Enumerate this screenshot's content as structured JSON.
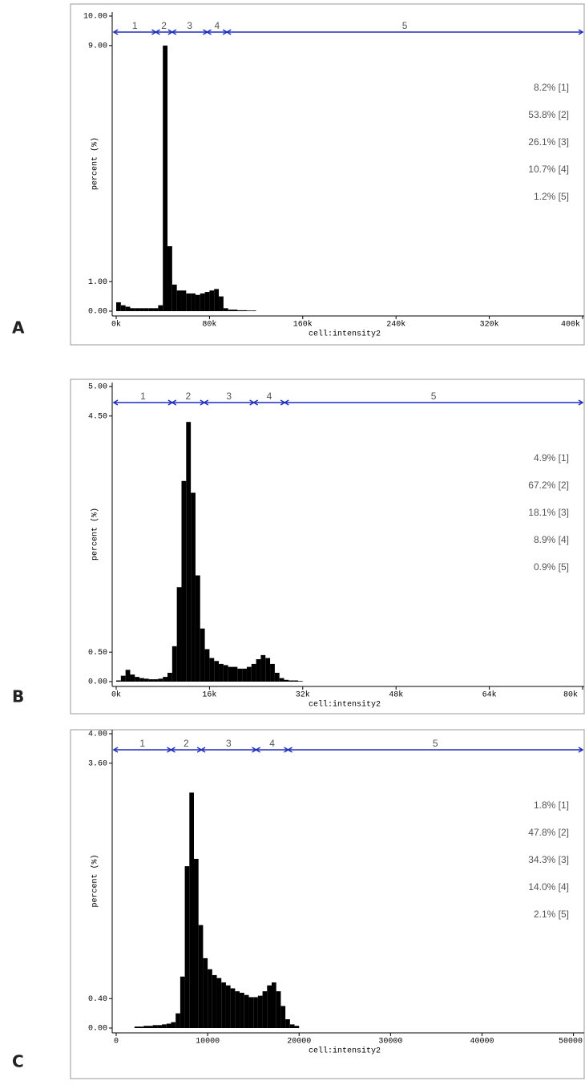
{
  "chart_data": [
    {
      "type": "histogram",
      "panel_label": "A",
      "xlabel": "cell:intensity2",
      "ylabel": "percent (%)",
      "color": "#000000",
      "gate_color": "#1f2fbf",
      "xlim": [
        0,
        400000
      ],
      "ylim": [
        0,
        10
      ],
      "xticks": [
        {
          "value": 0,
          "label": "0k"
        },
        {
          "value": 80000,
          "label": "80k"
        },
        {
          "value": 160000,
          "label": "160k"
        },
        {
          "value": 240000,
          "label": "240k"
        },
        {
          "value": 320000,
          "label": "320k"
        },
        {
          "value": 400000,
          "label": "400k"
        }
      ],
      "yticks": [
        {
          "value": 0,
          "label": "0.00"
        },
        {
          "value": 1,
          "label": "1.00"
        },
        {
          "value": 9,
          "label": "9.00"
        },
        {
          "value": 10,
          "label": "10.00"
        }
      ],
      "bins": [
        0,
        4000,
        8000,
        12000,
        16000,
        20000,
        24000,
        28000,
        32000,
        36000,
        40000,
        44000,
        48000,
        52000,
        56000,
        60000,
        64000,
        68000,
        72000,
        76000,
        80000,
        84000,
        88000,
        92000,
        96000,
        100000,
        104000,
        108000,
        112000,
        116000,
        120000
      ],
      "values": [
        0.3,
        0.2,
        0.15,
        0.1,
        0.1,
        0.1,
        0.1,
        0.1,
        0.1,
        0.2,
        9.0,
        2.2,
        0.9,
        0.7,
        0.7,
        0.6,
        0.6,
        0.55,
        0.6,
        0.65,
        0.7,
        0.75,
        0.5,
        0.1,
        0.05,
        0.05,
        0.03,
        0.03,
        0.02,
        0.02
      ],
      "gates": [
        {
          "label": "1",
          "start": 0,
          "end": 34000,
          "percent": "8.2% [1]"
        },
        {
          "label": "2",
          "start": 34000,
          "end": 48000,
          "percent": "53.8% [2]"
        },
        {
          "label": "3",
          "start": 48000,
          "end": 78000,
          "percent": "26.1% [3]"
        },
        {
          "label": "4",
          "start": 78000,
          "end": 95000,
          "percent": "10.7% [4]"
        },
        {
          "label": "5",
          "start": 95000,
          "end": 400000,
          "percent": "1.2% [5]"
        }
      ]
    },
    {
      "type": "histogram",
      "panel_label": "B",
      "xlabel": "cell:intensity2",
      "ylabel": "percent (%)",
      "color": "#000000",
      "gate_color": "#1f2fbf",
      "xlim": [
        0,
        80000
      ],
      "ylim": [
        0,
        5
      ],
      "xticks": [
        {
          "value": 0,
          "label": "0k"
        },
        {
          "value": 16000,
          "label": "16k"
        },
        {
          "value": 32000,
          "label": "32k"
        },
        {
          "value": 48000,
          "label": "48k"
        },
        {
          "value": 64000,
          "label": "64k"
        },
        {
          "value": 80000,
          "label": "80k"
        }
      ],
      "yticks": [
        {
          "value": 0,
          "label": "0.00"
        },
        {
          "value": 0.5,
          "label": "0.50"
        },
        {
          "value": 4.5,
          "label": "4.50"
        },
        {
          "value": 5,
          "label": "5.00"
        }
      ],
      "bins": [
        0,
        800,
        1600,
        2400,
        3200,
        4000,
        4800,
        5600,
        6400,
        7200,
        8000,
        8800,
        9600,
        10400,
        11200,
        12000,
        12800,
        13600,
        14400,
        15200,
        16000,
        16800,
        17600,
        18400,
        19200,
        20000,
        20800,
        21600,
        22400,
        23200,
        24000,
        24800,
        25600,
        26400,
        27200,
        28000,
        28800,
        29600,
        30400,
        31200,
        32000
      ],
      "values": [
        0.02,
        0.1,
        0.2,
        0.12,
        0.08,
        0.06,
        0.05,
        0.04,
        0.04,
        0.05,
        0.08,
        0.15,
        0.6,
        1.6,
        3.4,
        4.4,
        3.2,
        1.8,
        0.9,
        0.55,
        0.4,
        0.35,
        0.3,
        0.28,
        0.25,
        0.25,
        0.22,
        0.22,
        0.25,
        0.3,
        0.38,
        0.45,
        0.4,
        0.3,
        0.15,
        0.06,
        0.03,
        0.02,
        0.02,
        0.01
      ],
      "gates": [
        {
          "label": "1",
          "start": 0,
          "end": 9600,
          "percent": "4.9% [1]"
        },
        {
          "label": "2",
          "start": 9600,
          "end": 15100,
          "percent": "67.2% [2]"
        },
        {
          "label": "3",
          "start": 15100,
          "end": 23600,
          "percent": "18.1% [3]"
        },
        {
          "label": "4",
          "start": 23600,
          "end": 28900,
          "percent": "8.9% [4]"
        },
        {
          "label": "5",
          "start": 28900,
          "end": 80000,
          "percent": "0.9% [5]"
        }
      ]
    },
    {
      "type": "histogram",
      "panel_label": "C",
      "xlabel": "cell:intensity2",
      "ylabel": "percent (%)",
      "color": "#000000",
      "gate_color": "#1f2fbf",
      "xlim": [
        0,
        51000
      ],
      "ylim": [
        0,
        4
      ],
      "xticks": [
        0,
        10000,
        20000,
        30000,
        40000,
        50000
      ],
      "yticks": [
        {
          "value": 0,
          "label": "0.00"
        },
        {
          "value": 0.4,
          "label": "0.40"
        },
        {
          "value": 3.6,
          "label": "3.60"
        },
        {
          "value": 4,
          "label": "4.00"
        }
      ],
      "bins": [
        2000,
        2500,
        3000,
        3500,
        4000,
        4500,
        5000,
        5500,
        6000,
        6500,
        7000,
        7500,
        8000,
        8500,
        9000,
        9500,
        10000,
        10500,
        11000,
        11500,
        12000,
        12500,
        13000,
        13500,
        14000,
        14500,
        15000,
        15500,
        16000,
        16500,
        17000,
        17500,
        18000,
        18500,
        19000,
        19500,
        20000
      ],
      "values": [
        0.02,
        0.02,
        0.03,
        0.03,
        0.04,
        0.04,
        0.05,
        0.06,
        0.08,
        0.2,
        0.7,
        2.2,
        3.2,
        2.3,
        1.4,
        0.95,
        0.8,
        0.72,
        0.68,
        0.62,
        0.58,
        0.54,
        0.5,
        0.48,
        0.45,
        0.42,
        0.42,
        0.44,
        0.5,
        0.58,
        0.62,
        0.5,
        0.3,
        0.12,
        0.05,
        0.03
      ],
      "gates": [
        {
          "label": "1",
          "start": 0,
          "end": 6000,
          "percent": "1.8% [1]"
        },
        {
          "label": "2",
          "start": 6000,
          "end": 9300,
          "percent": "47.8% [2]"
        },
        {
          "label": "3",
          "start": 9300,
          "end": 15300,
          "percent": "34.3% [3]"
        },
        {
          "label": "4",
          "start": 15300,
          "end": 18800,
          "percent": "14.0% [4]"
        },
        {
          "label": "5",
          "start": 18800,
          "end": 51000,
          "percent": "2.1% [5]"
        }
      ]
    }
  ]
}
